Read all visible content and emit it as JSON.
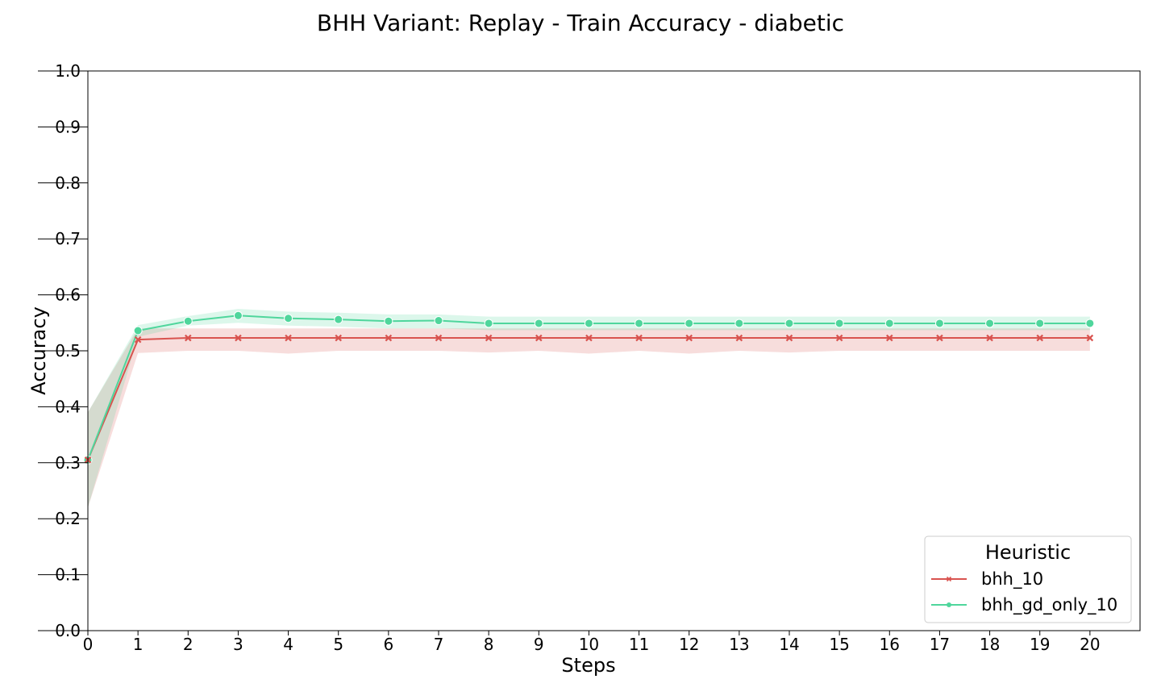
{
  "chart_data": {
    "type": "line",
    "title": "BHH Variant: Replay - Train Accuracy - diabetic",
    "xlabel": "Steps",
    "ylabel": "Accuracy",
    "xlim": [
      0,
      21
    ],
    "ylim": [
      0.0,
      1.0
    ],
    "x": [
      0,
      1,
      2,
      3,
      4,
      5,
      6,
      7,
      8,
      9,
      10,
      11,
      12,
      13,
      14,
      15,
      16,
      17,
      18,
      19,
      20
    ],
    "xticks": [
      "0",
      "1",
      "2",
      "3",
      "4",
      "5",
      "6",
      "7",
      "8",
      "9",
      "10",
      "11",
      "12",
      "13",
      "14",
      "15",
      "16",
      "17",
      "18",
      "19",
      "20"
    ],
    "yticks": [
      "0.0",
      "0.1",
      "0.2",
      "0.3",
      "0.4",
      "0.5",
      "0.6",
      "0.7",
      "0.8",
      "0.9",
      "1.0"
    ],
    "grid": false,
    "legend": {
      "title": "Heuristic",
      "placement": "lower-right"
    },
    "series": [
      {
        "name": "bhh_10",
        "color": "#d9534f",
        "marker": "x",
        "values": [
          0.305,
          0.52,
          0.523,
          0.523,
          0.523,
          0.523,
          0.523,
          0.523,
          0.523,
          0.523,
          0.523,
          0.523,
          0.523,
          0.523,
          0.523,
          0.523,
          0.523,
          0.523,
          0.523,
          0.523,
          0.523
        ],
        "lower": [
          0.22,
          0.496,
          0.5,
          0.5,
          0.495,
          0.5,
          0.5,
          0.5,
          0.497,
          0.5,
          0.495,
          0.5,
          0.495,
          0.5,
          0.497,
          0.5,
          0.5,
          0.5,
          0.5,
          0.5,
          0.5
        ],
        "upper": [
          0.39,
          0.54,
          0.54,
          0.54,
          0.54,
          0.54,
          0.54,
          0.54,
          0.54,
          0.54,
          0.54,
          0.54,
          0.54,
          0.54,
          0.54,
          0.54,
          0.54,
          0.54,
          0.54,
          0.54,
          0.54
        ]
      },
      {
        "name": "bhh_gd_only_10",
        "color": "#4fd69c",
        "marker": "circle",
        "values": [
          0.305,
          0.536,
          0.553,
          0.563,
          0.558,
          0.556,
          0.553,
          0.554,
          0.549,
          0.549,
          0.549,
          0.549,
          0.549,
          0.549,
          0.549,
          0.549,
          0.549,
          0.549,
          0.549,
          0.549,
          0.549
        ],
        "lower": [
          0.22,
          0.525,
          0.545,
          0.55,
          0.545,
          0.543,
          0.54,
          0.54,
          0.537,
          0.537,
          0.537,
          0.537,
          0.537,
          0.537,
          0.537,
          0.537,
          0.537,
          0.537,
          0.537,
          0.537,
          0.537
        ],
        "upper": [
          0.39,
          0.546,
          0.562,
          0.575,
          0.57,
          0.568,
          0.565,
          0.565,
          0.561,
          0.561,
          0.561,
          0.561,
          0.561,
          0.561,
          0.561,
          0.561,
          0.561,
          0.561,
          0.561,
          0.561,
          0.561
        ]
      }
    ]
  }
}
